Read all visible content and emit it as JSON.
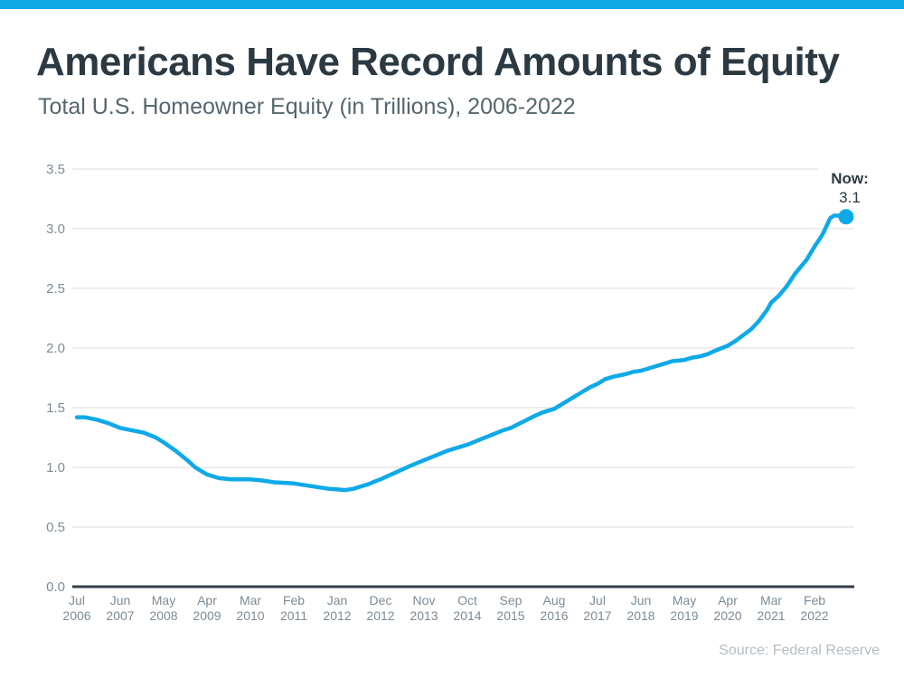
{
  "page": {
    "title": "Americans Have Record Amounts of Equity",
    "subtitle": "Total U.S. Homeowner Equity (in Trillions), 2006-2022",
    "source": "Source: Federal Reserve",
    "accent_color": "#0fa9e8"
  },
  "annotation": {
    "label": "Now:",
    "value": "3.1"
  },
  "chart_data": {
    "type": "line",
    "title": "Americans Have Record Amounts of Equity",
    "subtitle": "Total U.S. Homeowner Equity (in Trillions), 2006-2022",
    "series_name": "Total U.S. Homeowner Equity (in Trillions)",
    "ylim": [
      0.0,
      3.5
    ],
    "y_tick_labels": [
      "3.5",
      "3.0",
      "2.5",
      "2.0",
      "1.5",
      "1.0",
      "0.5",
      "0.0"
    ],
    "y_tick_values": [
      3.5,
      3.0,
      2.5,
      2.0,
      1.5,
      1.0,
      0.5,
      0.0
    ],
    "grid": true,
    "x_tick_interval_months": 11,
    "x_tick_labels": [
      {
        "month": "Jul",
        "year": "2006"
      },
      {
        "month": "Jun",
        "year": "2007"
      },
      {
        "month": "May",
        "year": "2008"
      },
      {
        "month": "Apr",
        "year": "2009"
      },
      {
        "month": "Mar",
        "year": "2010"
      },
      {
        "month": "Feb",
        "year": "2011"
      },
      {
        "month": "Jan",
        "year": "2012"
      },
      {
        "month": "Dec",
        "year": "2012"
      },
      {
        "month": "Nov",
        "year": "2013"
      },
      {
        "month": "Oct",
        "year": "2014"
      },
      {
        "month": "Sep",
        "year": "2015"
      },
      {
        "month": "Aug",
        "year": "2016"
      },
      {
        "month": "Jul",
        "year": "2017"
      },
      {
        "month": "Jun",
        "year": "2018"
      },
      {
        "month": "May",
        "year": "2019"
      },
      {
        "month": "Apr",
        "year": "2020"
      },
      {
        "month": "Mar",
        "year": "2021"
      },
      {
        "month": "Feb",
        "year": "2022"
      }
    ],
    "values_at_ticks": [
      1.42,
      1.33,
      1.21,
      0.94,
      0.9,
      0.87,
      0.81,
      0.9,
      1.06,
      1.19,
      1.33,
      1.49,
      1.7,
      1.81,
      1.9,
      2.02,
      2.38,
      2.85
    ],
    "points_month_index_value": [
      [
        0,
        1.42
      ],
      [
        2,
        1.42
      ],
      [
        5,
        1.4
      ],
      [
        8,
        1.37
      ],
      [
        11,
        1.33
      ],
      [
        14,
        1.31
      ],
      [
        17,
        1.29
      ],
      [
        20,
        1.25
      ],
      [
        22,
        1.21
      ],
      [
        25,
        1.14
      ],
      [
        28,
        1.06
      ],
      [
        30,
        1.0
      ],
      [
        33,
        0.94
      ],
      [
        36,
        0.91
      ],
      [
        39,
        0.9
      ],
      [
        42,
        0.9
      ],
      [
        44,
        0.9
      ],
      [
        47,
        0.89
      ],
      [
        50,
        0.875
      ],
      [
        53,
        0.87
      ],
      [
        55,
        0.865
      ],
      [
        58,
        0.85
      ],
      [
        61,
        0.835
      ],
      [
        64,
        0.82
      ],
      [
        66,
        0.815
      ],
      [
        68,
        0.81
      ],
      [
        70,
        0.82
      ],
      [
        72,
        0.84
      ],
      [
        74,
        0.86
      ],
      [
        75,
        0.875
      ],
      [
        77,
        0.9
      ],
      [
        79,
        0.93
      ],
      [
        81,
        0.96
      ],
      [
        83,
        0.99
      ],
      [
        85,
        1.02
      ],
      [
        88,
        1.06
      ],
      [
        91,
        1.1
      ],
      [
        94,
        1.14
      ],
      [
        96,
        1.16
      ],
      [
        99,
        1.19
      ],
      [
        102,
        1.23
      ],
      [
        105,
        1.27
      ],
      [
        108,
        1.31
      ],
      [
        110,
        1.33
      ],
      [
        113,
        1.38
      ],
      [
        116,
        1.43
      ],
      [
        118,
        1.46
      ],
      [
        121,
        1.49
      ],
      [
        124,
        1.55
      ],
      [
        127,
        1.61
      ],
      [
        130,
        1.67
      ],
      [
        132,
        1.7
      ],
      [
        134,
        1.74
      ],
      [
        136,
        1.76
      ],
      [
        139,
        1.78
      ],
      [
        141,
        1.8
      ],
      [
        143,
        1.81
      ],
      [
        146,
        1.84
      ],
      [
        149,
        1.87
      ],
      [
        151,
        1.89
      ],
      [
        154,
        1.9
      ],
      [
        156,
        1.92
      ],
      [
        158,
        1.93
      ],
      [
        160,
        1.95
      ],
      [
        162,
        1.98
      ],
      [
        165,
        2.02
      ],
      [
        167,
        2.06
      ],
      [
        169,
        2.11
      ],
      [
        171,
        2.16
      ],
      [
        173,
        2.23
      ],
      [
        175,
        2.32
      ],
      [
        176,
        2.38
      ],
      [
        178,
        2.44
      ],
      [
        180,
        2.52
      ],
      [
        182,
        2.62
      ],
      [
        184,
        2.7
      ],
      [
        185,
        2.74
      ],
      [
        187,
        2.85
      ],
      [
        188,
        2.9
      ],
      [
        189,
        2.95
      ],
      [
        190,
        3.02
      ],
      [
        191,
        3.09
      ],
      [
        192,
        3.11
      ],
      [
        194,
        3.11
      ],
      [
        195,
        3.1
      ]
    ],
    "end_point": {
      "month_index": 195,
      "value": 3.1,
      "label": "Now: 3.1"
    },
    "line_color": "#0fa9e8",
    "dot_color": "#0fa9e8",
    "grid_color": "#e4e4e6",
    "axis_color": "#333e48",
    "tick_text_color": "#7c8b98",
    "legend": "none"
  }
}
